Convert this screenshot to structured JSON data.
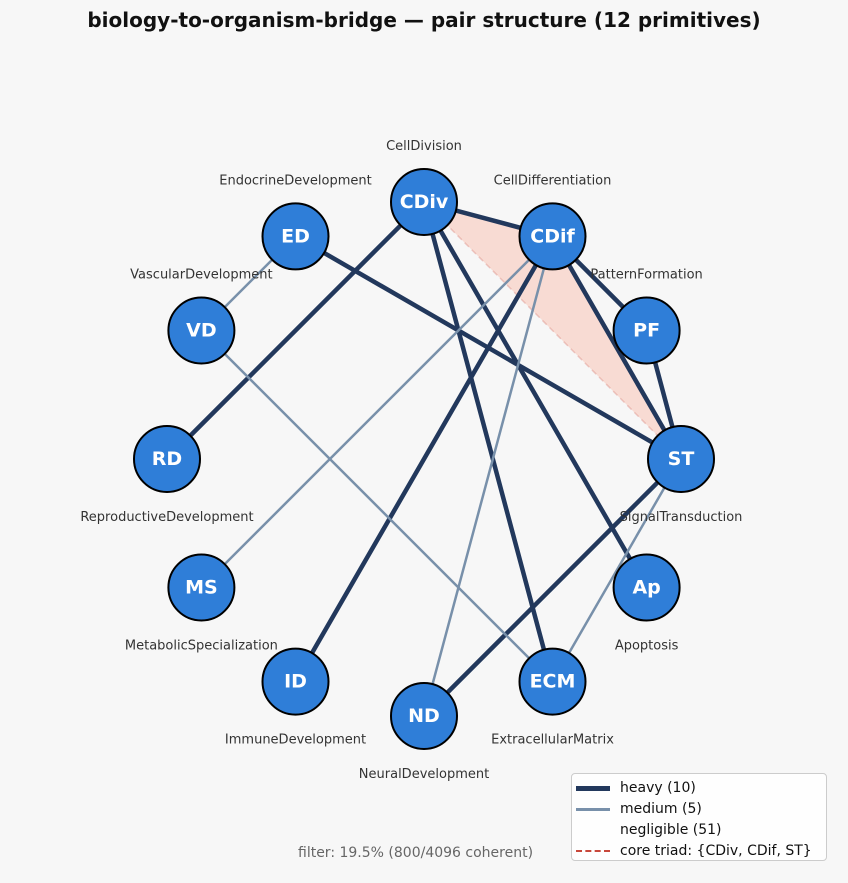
{
  "title": "biology-to-organism-bridge — pair structure  (12 primitives)",
  "footer": "filter: 19.5%  (800/4096 coherent)",
  "colors": {
    "node_fill": "#2f7ed8",
    "heavy": "#22385c",
    "medium": "#7890aa",
    "triad_fill": "#f8d6cd",
    "triad_edge": "#c8473a",
    "background": "#f7f7f7"
  },
  "nodes": [
    {
      "id": "CDiv",
      "label": "CellDivision"
    },
    {
      "id": "CDif",
      "label": "CellDifferentiation"
    },
    {
      "id": "PF",
      "label": "PatternFormation"
    },
    {
      "id": "ST",
      "label": "SignalTransduction"
    },
    {
      "id": "Ap",
      "label": "Apoptosis"
    },
    {
      "id": "ECM",
      "label": "ExtracellularMatrix"
    },
    {
      "id": "ND",
      "label": "NeuralDevelopment"
    },
    {
      "id": "ID",
      "label": "ImmuneDevelopment"
    },
    {
      "id": "MS",
      "label": "MetabolicSpecialization"
    },
    {
      "id": "RD",
      "label": "ReproductiveDevelopment"
    },
    {
      "id": "VD",
      "label": "VascularDevelopment"
    },
    {
      "id": "ED",
      "label": "EndocrineDevelopment"
    }
  ],
  "edges": [
    {
      "from": "CDiv",
      "to": "CDif",
      "weight": "heavy"
    },
    {
      "from": "CDiv",
      "to": "RD",
      "weight": "heavy"
    },
    {
      "from": "CDiv",
      "to": "ECM",
      "weight": "heavy"
    },
    {
      "from": "CDiv",
      "to": "Ap",
      "weight": "heavy"
    },
    {
      "from": "CDif",
      "to": "PF",
      "weight": "heavy"
    },
    {
      "from": "CDif",
      "to": "ST",
      "weight": "heavy"
    },
    {
      "from": "CDif",
      "to": "ID",
      "weight": "heavy"
    },
    {
      "from": "PF",
      "to": "ST",
      "weight": "heavy"
    },
    {
      "from": "ED",
      "to": "ST",
      "weight": "heavy"
    },
    {
      "from": "ST",
      "to": "ND",
      "weight": "heavy"
    },
    {
      "from": "VD",
      "to": "ED",
      "weight": "medium"
    },
    {
      "from": "VD",
      "to": "ECM",
      "weight": "medium"
    },
    {
      "from": "CDif",
      "to": "MS",
      "weight": "medium"
    },
    {
      "from": "CDif",
      "to": "ND",
      "weight": "medium"
    },
    {
      "from": "ST",
      "to": "ECM",
      "weight": "medium"
    }
  ],
  "triad": [
    "CDiv",
    "CDif",
    "ST"
  ],
  "legend": {
    "heavy": "heavy (10)",
    "medium": "medium (5)",
    "negligible": "negligible (51)",
    "triad": "core triad: {CDiv, CDif, ST}"
  }
}
